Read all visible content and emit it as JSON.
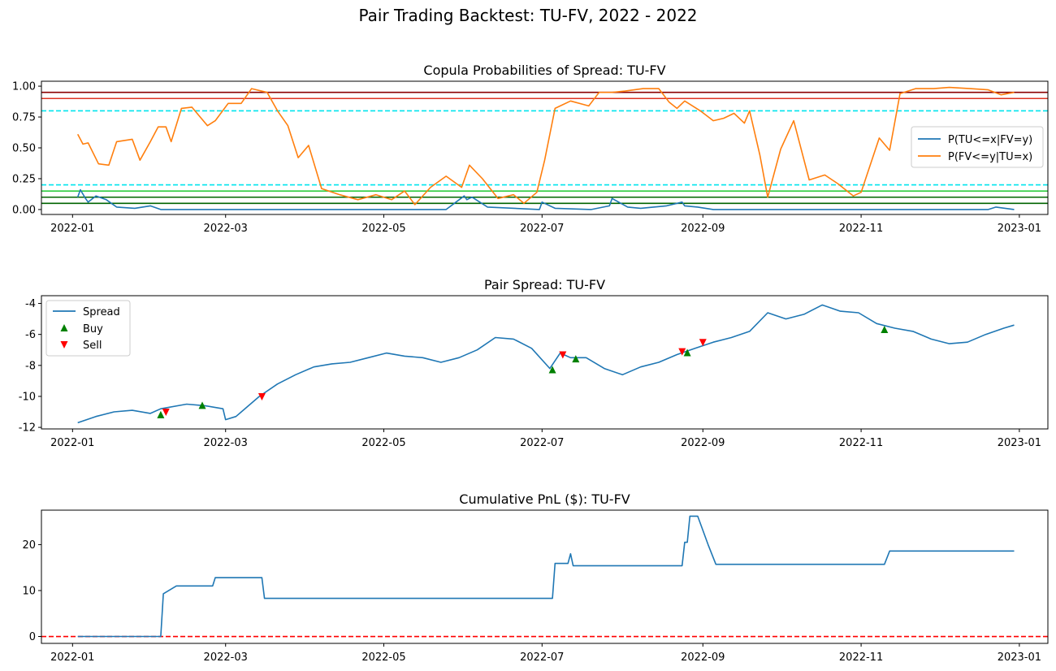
{
  "figure": {
    "suptitle": "Pair Trading Backtest: TU-FV, 2022 - 2022"
  },
  "colors": {
    "blue": "#1f77b4",
    "orange": "#ff7f0e",
    "cyan": "#00e5ee",
    "lime": "#2ecc40",
    "darkgreen": "#006400",
    "red": "#dd3322",
    "darkred": "#8b0000",
    "buy": "#008000",
    "sell": "#ff0000"
  },
  "x_ticks": [
    "2022-01",
    "2022-03",
    "2022-05",
    "2022-07",
    "2022-09",
    "2022-11",
    "2023-01"
  ],
  "chart_data": [
    {
      "type": "line",
      "title": "Copula Probabilities of Spread: TU-FV",
      "xlim": [
        "2021-12-20",
        "2023-01-12"
      ],
      "ylim": [
        -0.04,
        1.04
      ],
      "y_ticks": [
        "0.00",
        "0.25",
        "0.50",
        "0.75",
        "1.00"
      ],
      "legend": "center-right",
      "series": [
        {
          "name": "P(TU<=x|FV=y)",
          "color_key": "blue",
          "x": [
            "2022-01-03",
            "2022-01-04",
            "2022-01-06",
            "2022-01-07",
            "2022-01-10",
            "2022-01-14",
            "2022-01-18",
            "2022-01-25",
            "2022-01-31",
            "2022-02-04",
            "2022-02-10",
            "2022-03-01",
            "2022-04-01",
            "2022-05-01",
            "2022-05-25",
            "2022-06-01",
            "2022-06-02",
            "2022-06-04",
            "2022-06-10",
            "2022-06-30",
            "2022-07-01",
            "2022-07-06",
            "2022-07-20",
            "2022-07-27",
            "2022-07-28",
            "2022-08-03",
            "2022-08-08",
            "2022-08-18",
            "2022-08-24",
            "2022-08-25",
            "2022-08-30",
            "2022-09-05",
            "2022-11-01",
            "2022-12-20",
            "2022-12-23",
            "2022-12-30"
          ],
          "y": [
            0.1,
            0.16,
            0.09,
            0.06,
            0.11,
            0.08,
            0.02,
            0.01,
            0.03,
            0.0,
            0.0,
            0.0,
            0.0,
            0.0,
            0.0,
            0.11,
            0.08,
            0.1,
            0.02,
            0.0,
            0.06,
            0.01,
            0.0,
            0.03,
            0.09,
            0.02,
            0.01,
            0.03,
            0.06,
            0.03,
            0.02,
            0.0,
            0.0,
            0.0,
            0.02,
            0.0
          ]
        },
        {
          "name": "P(FV<=y|TU=x)",
          "color_key": "orange",
          "x": [
            "2022-01-03",
            "2022-01-05",
            "2022-01-07",
            "2022-01-11",
            "2022-01-15",
            "2022-01-18",
            "2022-01-24",
            "2022-01-27",
            "2022-01-31",
            "2022-02-03",
            "2022-02-06",
            "2022-02-08",
            "2022-02-12",
            "2022-02-16",
            "2022-02-22",
            "2022-02-25",
            "2022-03-02",
            "2022-03-07",
            "2022-03-11",
            "2022-03-17",
            "2022-03-21",
            "2022-03-25",
            "2022-03-29",
            "2022-04-02",
            "2022-04-07",
            "2022-04-14",
            "2022-04-21",
            "2022-04-28",
            "2022-05-04",
            "2022-05-09",
            "2022-05-13",
            "2022-05-19",
            "2022-05-25",
            "2022-05-31",
            "2022-06-03",
            "2022-06-08",
            "2022-06-14",
            "2022-06-20",
            "2022-06-24",
            "2022-06-29",
            "2022-07-02",
            "2022-07-06",
            "2022-07-12",
            "2022-07-19",
            "2022-07-23",
            "2022-07-28",
            "2022-08-02",
            "2022-08-09",
            "2022-08-15",
            "2022-08-19",
            "2022-08-22",
            "2022-08-25",
            "2022-08-31",
            "2022-09-05",
            "2022-09-09",
            "2022-09-13",
            "2022-09-17",
            "2022-09-19",
            "2022-09-23",
            "2022-09-26",
            "2022-10-01",
            "2022-10-06",
            "2022-10-12",
            "2022-10-18",
            "2022-10-23",
            "2022-10-29",
            "2022-11-01",
            "2022-11-08",
            "2022-11-12",
            "2022-11-16",
            "2022-11-22",
            "2022-11-29",
            "2022-12-05",
            "2022-12-13",
            "2022-12-20",
            "2022-12-25",
            "2022-12-30"
          ],
          "y": [
            0.61,
            0.53,
            0.54,
            0.37,
            0.36,
            0.55,
            0.57,
            0.4,
            0.55,
            0.67,
            0.67,
            0.55,
            0.82,
            0.83,
            0.68,
            0.72,
            0.86,
            0.86,
            0.98,
            0.95,
            0.8,
            0.68,
            0.42,
            0.52,
            0.17,
            0.12,
            0.08,
            0.12,
            0.08,
            0.15,
            0.04,
            0.18,
            0.27,
            0.18,
            0.36,
            0.25,
            0.09,
            0.12,
            0.05,
            0.14,
            0.4,
            0.82,
            0.88,
            0.84,
            0.95,
            0.95,
            0.96,
            0.98,
            0.98,
            0.87,
            0.82,
            0.88,
            0.8,
            0.72,
            0.74,
            0.78,
            0.7,
            0.8,
            0.44,
            0.1,
            0.49,
            0.72,
            0.24,
            0.28,
            0.21,
            0.11,
            0.14,
            0.58,
            0.48,
            0.94,
            0.98,
            0.98,
            0.99,
            0.98,
            0.97,
            0.93,
            0.95
          ]
        }
      ],
      "hlines": [
        {
          "y": 0.95,
          "color_key": "darkred",
          "style": "solid"
        },
        {
          "y": 0.9,
          "color_key": "red",
          "style": "solid"
        },
        {
          "y": 0.8,
          "color_key": "cyan",
          "style": "dashed"
        },
        {
          "y": 0.2,
          "color_key": "cyan",
          "style": "dashed"
        },
        {
          "y": 0.15,
          "color_key": "lime",
          "style": "solid"
        },
        {
          "y": 0.1,
          "color_key": "darkgreen",
          "style": "solid"
        },
        {
          "y": 0.05,
          "color_key": "darkgreen",
          "style": "solid"
        }
      ]
    },
    {
      "type": "line",
      "title": "Pair Spread: TU-FV",
      "xlim": [
        "2021-12-20",
        "2023-01-12"
      ],
      "ylim": [
        -12.1,
        -3.5
      ],
      "y_ticks": [
        "-12",
        "-10",
        "-8",
        "-6",
        "-4"
      ],
      "y_tick_values": [
        -12,
        -10,
        -8,
        -6,
        -4
      ],
      "legend": "upper-left",
      "series": [
        {
          "name": "Spread",
          "color_key": "blue",
          "x": [
            "2022-01-03",
            "2022-01-10",
            "2022-01-17",
            "2022-01-24",
            "2022-01-31",
            "2022-02-04",
            "2022-02-14",
            "2022-02-21",
            "2022-02-28",
            "2022-03-01",
            "2022-03-05",
            "2022-03-14",
            "2022-03-21",
            "2022-03-28",
            "2022-04-04",
            "2022-04-11",
            "2022-04-18",
            "2022-04-25",
            "2022-05-02",
            "2022-05-09",
            "2022-05-16",
            "2022-05-23",
            "2022-05-30",
            "2022-06-06",
            "2022-06-13",
            "2022-06-20",
            "2022-06-27",
            "2022-07-04",
            "2022-07-08",
            "2022-07-12",
            "2022-07-18",
            "2022-07-25",
            "2022-08-01",
            "2022-08-08",
            "2022-08-15",
            "2022-08-22",
            "2022-08-29",
            "2022-09-05",
            "2022-09-12",
            "2022-09-19",
            "2022-09-26",
            "2022-10-03",
            "2022-10-10",
            "2022-10-17",
            "2022-10-24",
            "2022-10-31",
            "2022-11-07",
            "2022-11-14",
            "2022-11-21",
            "2022-11-28",
            "2022-12-05",
            "2022-12-12",
            "2022-12-19",
            "2022-12-26",
            "2022-12-30"
          ],
          "y": [
            -11.7,
            -11.3,
            -11.0,
            -10.9,
            -11.1,
            -10.8,
            -10.5,
            -10.6,
            -10.8,
            -11.5,
            -11.3,
            -10.0,
            -9.2,
            -8.6,
            -8.1,
            -7.9,
            -7.8,
            -7.5,
            -7.2,
            -7.4,
            -7.5,
            -7.8,
            -7.5,
            -7.0,
            -6.2,
            -6.3,
            -6.9,
            -8.2,
            -7.2,
            -7.5,
            -7.5,
            -8.2,
            -8.6,
            -8.1,
            -7.8,
            -7.3,
            -6.9,
            -6.5,
            -6.2,
            -5.8,
            -4.6,
            -5.0,
            -4.7,
            -4.1,
            -4.5,
            -4.6,
            -5.3,
            -5.6,
            -5.8,
            -6.3,
            -6.6,
            -6.5,
            -6.0,
            -5.6,
            -5.4
          ]
        }
      ],
      "markers": [
        {
          "name": "Buy",
          "color_key": "buy",
          "shape": "triangle-up",
          "x": [
            "2022-02-04",
            "2022-02-20",
            "2022-07-05",
            "2022-07-14",
            "2022-08-26",
            "2022-11-10"
          ],
          "y": [
            -11.2,
            -10.6,
            -8.3,
            -7.6,
            -7.2,
            -5.7
          ]
        },
        {
          "name": "Sell",
          "color_key": "sell",
          "shape": "triangle-down",
          "x": [
            "2022-02-06",
            "2022-03-15",
            "2022-07-09",
            "2022-08-24",
            "2022-09-01"
          ],
          "y": [
            -11.0,
            -10.0,
            -7.3,
            -7.1,
            -6.5
          ]
        }
      ]
    },
    {
      "type": "line",
      "title": "Cumulative PnL ($): TU-FV",
      "xlim": [
        "2021-12-20",
        "2023-01-12"
      ],
      "ylim": [
        -1.5,
        27.5
      ],
      "y_ticks": [
        "0",
        "10",
        "20"
      ],
      "y_tick_values": [
        0,
        10,
        20
      ],
      "series": [
        {
          "name": "",
          "color_key": "blue",
          "x": [
            "2022-01-03",
            "2022-02-04",
            "2022-02-05",
            "2022-02-10",
            "2022-02-24",
            "2022-02-25",
            "2022-03-15",
            "2022-03-16",
            "2022-07-05",
            "2022-07-06",
            "2022-07-11",
            "2022-07-12",
            "2022-07-13",
            "2022-08-24",
            "2022-08-25",
            "2022-08-26",
            "2022-08-27",
            "2022-08-30",
            "2022-09-03",
            "2022-09-06",
            "2022-11-10",
            "2022-11-12",
            "2022-12-30"
          ],
          "y": [
            0,
            0,
            9.3,
            11.0,
            11.0,
            12.8,
            12.8,
            8.3,
            8.3,
            15.9,
            15.9,
            18.0,
            15.4,
            15.4,
            20.5,
            20.5,
            26.2,
            26.2,
            20.0,
            15.7,
            15.7,
            18.6,
            18.6
          ]
        }
      ],
      "hlines": [
        {
          "y": 0,
          "color_key": "sell",
          "style": "dashed"
        }
      ]
    }
  ]
}
